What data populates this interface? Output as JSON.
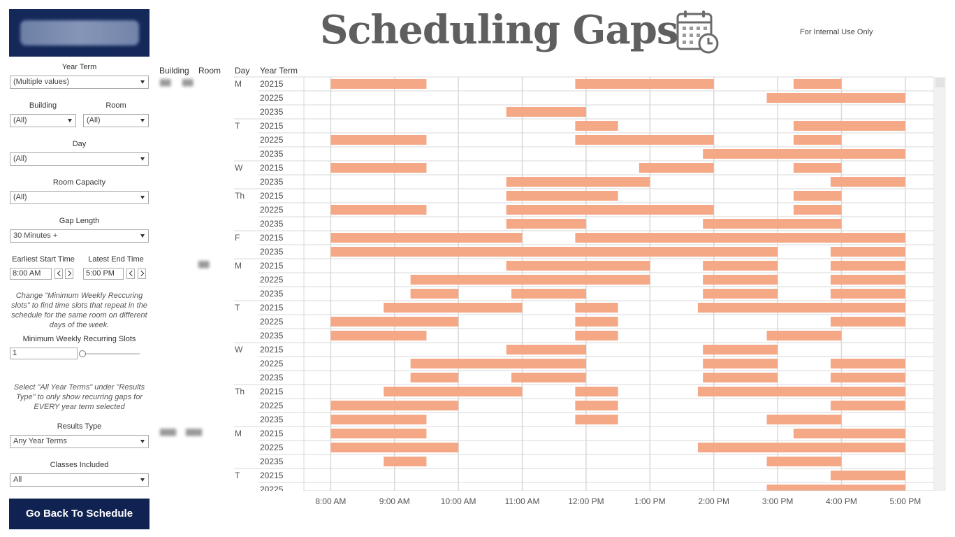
{
  "header": {
    "title": "Scheduling Gaps",
    "internal_note": "For Internal  Use Only",
    "icon": "calendar-clock-icon"
  },
  "filters": {
    "year_term": {
      "label": "Year Term",
      "value": "(Multiple values)"
    },
    "building": {
      "label": "Building",
      "value": "(All)"
    },
    "room": {
      "label": "Room",
      "value": "(All)"
    },
    "day": {
      "label": "Day",
      "value": "(All)"
    },
    "room_capacity": {
      "label": "Room Capacity",
      "value": "(All)"
    },
    "gap_length": {
      "label": "Gap Length",
      "value": "30 Minutes +"
    },
    "earliest_start": {
      "label": "Earliest Start Time",
      "value": "8:00 AM"
    },
    "latest_end": {
      "label": "Latest End Time",
      "value": "5:00 PM"
    },
    "recurring_note": "Change \"Minimum Weekly Reccuring slots\" to find time slots that repeat in the schedule for the same room on different days of the week.",
    "min_recurring": {
      "label": "Minimum Weekly Recurring Slots",
      "value": "1"
    },
    "results_note": "Select \"All Year Terms\" under \"Results Type\" to only show recurring gaps for EVERY year term selected",
    "results_type": {
      "label": "Results Type",
      "value": "Any Year Terms"
    },
    "classes_included": {
      "label": "Classes Included",
      "value": "All"
    }
  },
  "back_button": "Go Back To Schedule",
  "columns": {
    "building": "Building",
    "room": "Room",
    "day": "Day",
    "year_term": "Year Term"
  },
  "colors": {
    "bar": "#f4a886",
    "grid": "#d9d9d9",
    "nav": "#0f2252"
  },
  "chart_data": {
    "type": "gantt",
    "x_ticks": [
      "8:00 AM",
      "9:00 AM",
      "10:00 AM",
      "11:00 AM",
      "12:00 PM",
      "1:00 PM",
      "2:00 PM",
      "3:00 PM",
      "4:00 PM",
      "5:00 PM"
    ],
    "x_range_hours": [
      7.58,
      17.45
    ],
    "rows": [
      {
        "day": "M",
        "term": "20215",
        "gaps": [
          [
            8.0,
            9.5
          ],
          [
            11.83,
            14.0
          ],
          [
            15.25,
            16.0
          ]
        ]
      },
      {
        "day": "",
        "term": "20225",
        "gaps": [
          [
            14.83,
            17.0
          ]
        ]
      },
      {
        "day": "",
        "term": "20235",
        "gaps": [
          [
            10.75,
            12.0
          ]
        ]
      },
      {
        "day": "T",
        "term": "20215",
        "gaps": [
          [
            11.83,
            12.5
          ],
          [
            15.25,
            17.0
          ]
        ]
      },
      {
        "day": "",
        "term": "20225",
        "gaps": [
          [
            8.0,
            9.5
          ],
          [
            11.83,
            14.0
          ],
          [
            15.25,
            16.0
          ]
        ]
      },
      {
        "day": "",
        "term": "20235",
        "gaps": [
          [
            13.83,
            17.0
          ]
        ]
      },
      {
        "day": "W",
        "term": "20215",
        "gaps": [
          [
            8.0,
            9.5
          ],
          [
            12.83,
            14.0
          ],
          [
            15.25,
            16.0
          ]
        ]
      },
      {
        "day": "",
        "term": "20235",
        "gaps": [
          [
            10.75,
            13.0
          ],
          [
            15.83,
            17.0
          ]
        ]
      },
      {
        "day": "Th",
        "term": "20215",
        "gaps": [
          [
            10.75,
            12.5
          ],
          [
            15.25,
            16.0
          ]
        ]
      },
      {
        "day": "",
        "term": "20225",
        "gaps": [
          [
            8.0,
            9.5
          ],
          [
            10.75,
            14.0
          ],
          [
            15.25,
            16.0
          ]
        ]
      },
      {
        "day": "",
        "term": "20235",
        "gaps": [
          [
            10.75,
            12.0
          ],
          [
            13.83,
            16.0
          ]
        ]
      },
      {
        "day": "F",
        "term": "20215",
        "gaps": [
          [
            8.0,
            11.0
          ],
          [
            11.83,
            17.0
          ]
        ]
      },
      {
        "day": "",
        "term": "20235",
        "gaps": [
          [
            8.0,
            15.0
          ],
          [
            15.83,
            17.0
          ]
        ]
      },
      {
        "day": "M",
        "term": "20215",
        "gaps": [
          [
            10.75,
            13.0
          ],
          [
            13.83,
            15.0
          ],
          [
            15.83,
            17.0
          ]
        ]
      },
      {
        "day": "",
        "term": "20225",
        "gaps": [
          [
            9.25,
            13.0
          ],
          [
            13.83,
            15.0
          ],
          [
            15.83,
            17.0
          ]
        ]
      },
      {
        "day": "",
        "term": "20235",
        "gaps": [
          [
            9.25,
            10.0
          ],
          [
            10.83,
            12.0
          ],
          [
            13.83,
            15.0
          ],
          [
            15.83,
            17.0
          ]
        ]
      },
      {
        "day": "T",
        "term": "20215",
        "gaps": [
          [
            8.83,
            11.0
          ],
          [
            11.83,
            12.5
          ],
          [
            13.75,
            17.0
          ]
        ]
      },
      {
        "day": "",
        "term": "20225",
        "gaps": [
          [
            8.0,
            10.0
          ],
          [
            11.83,
            12.5
          ],
          [
            15.83,
            17.0
          ]
        ]
      },
      {
        "day": "",
        "term": "20235",
        "gaps": [
          [
            8.0,
            9.5
          ],
          [
            11.83,
            12.5
          ],
          [
            14.83,
            16.0
          ]
        ]
      },
      {
        "day": "W",
        "term": "20215",
        "gaps": [
          [
            10.75,
            12.0
          ],
          [
            13.83,
            15.0
          ]
        ]
      },
      {
        "day": "",
        "term": "20225",
        "gaps": [
          [
            9.25,
            12.0
          ],
          [
            13.83,
            15.0
          ],
          [
            15.83,
            17.0
          ]
        ]
      },
      {
        "day": "",
        "term": "20235",
        "gaps": [
          [
            9.25,
            10.0
          ],
          [
            10.83,
            12.0
          ],
          [
            13.83,
            15.0
          ],
          [
            15.83,
            17.0
          ]
        ]
      },
      {
        "day": "Th",
        "term": "20215",
        "gaps": [
          [
            8.83,
            11.0
          ],
          [
            11.83,
            12.5
          ],
          [
            13.75,
            17.0
          ]
        ]
      },
      {
        "day": "",
        "term": "20225",
        "gaps": [
          [
            8.0,
            10.0
          ],
          [
            11.83,
            12.5
          ],
          [
            15.83,
            17.0
          ]
        ]
      },
      {
        "day": "",
        "term": "20235",
        "gaps": [
          [
            8.0,
            9.5
          ],
          [
            11.83,
            12.5
          ],
          [
            14.83,
            16.0
          ]
        ]
      },
      {
        "day": "M",
        "term": "20215",
        "gaps": [
          [
            8.0,
            9.5
          ],
          [
            15.25,
            17.0
          ]
        ]
      },
      {
        "day": "",
        "term": "20225",
        "gaps": [
          [
            8.0,
            10.0
          ],
          [
            13.75,
            17.0
          ]
        ]
      },
      {
        "day": "",
        "term": "20235",
        "gaps": [
          [
            8.83,
            9.5
          ],
          [
            14.83,
            16.0
          ]
        ]
      },
      {
        "day": "T",
        "term": "20215",
        "gaps": [
          [
            15.83,
            17.0
          ]
        ]
      },
      {
        "day": "",
        "term": "20225",
        "gaps": [
          [
            14.83,
            17.0
          ]
        ]
      }
    ]
  }
}
